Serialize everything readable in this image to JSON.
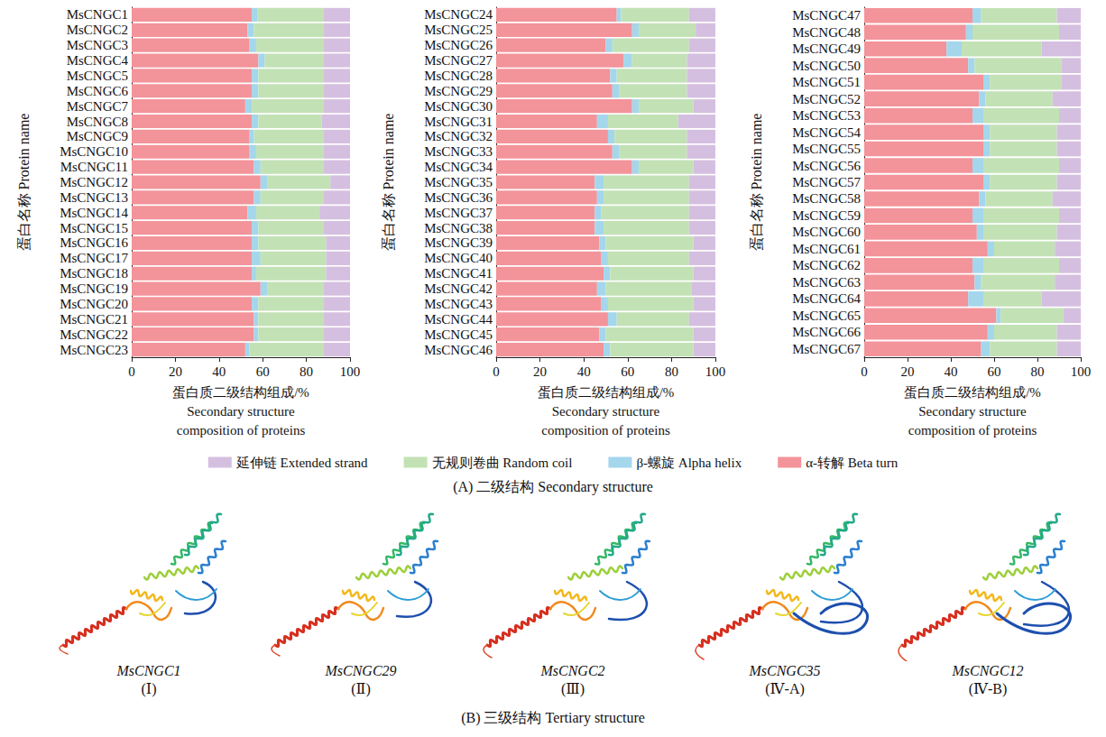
{
  "chart_data": [
    {
      "type": "bar",
      "orientation": "horizontal",
      "stacked": true,
      "grid": false,
      "legend": "bottom",
      "xlabel": "蛋白质二级结构组成/%\nSecondary structure\ncomposition of proteins",
      "ylabel": "蛋白名称 Protein name",
      "xlim": [
        0,
        100
      ],
      "xticks": [
        0,
        20,
        40,
        60,
        80,
        100
      ],
      "categories": [
        "MsCNGC1",
        "MsCNGC2",
        "MsCNGC3",
        "MsCNGC4",
        "MsCNGC5",
        "MsCNGC6",
        "MsCNGC7",
        "MsCNGC8",
        "MsCNGC9",
        "MsCNGC10",
        "MsCNGC11",
        "MsCNGC12",
        "MsCNGC13",
        "MsCNGC14",
        "MsCNGC15",
        "MsCNGC16",
        "MsCNGC17",
        "MsCNGC18",
        "MsCNGC19",
        "MsCNGC20",
        "MsCNGC21",
        "MsCNGC22",
        "MsCNGC23"
      ],
      "series": [
        {
          "name": "α-转解 Beta turn",
          "color": "#f3939a",
          "values": [
            55,
            53,
            54,
            58,
            55,
            55,
            52,
            55,
            54,
            54,
            56,
            59,
            56,
            53,
            55,
            55,
            55,
            55,
            59,
            55,
            56,
            56,
            52
          ]
        },
        {
          "name": "β-螺旋 Alpha helix",
          "color": "#a4d6ec",
          "values": [
            2.5,
            3,
            3,
            3,
            3,
            3,
            3,
            3,
            2,
            3,
            3,
            3,
            3,
            4,
            3,
            3,
            4,
            2,
            3,
            3,
            2,
            2,
            2
          ]
        },
        {
          "name": "无规则卷曲 Random coil",
          "color": "#c2e2b5",
          "values": [
            30.5,
            32,
            31,
            27,
            30,
            30,
            33,
            29,
            32,
            31,
            29,
            29,
            29,
            29,
            30,
            31,
            30,
            32,
            26,
            30,
            30,
            30,
            34
          ]
        },
        {
          "name": "延伸链 Extended strand",
          "color": "#d5bfe0",
          "values": [
            12,
            12,
            12,
            12,
            12,
            12,
            12,
            13,
            12,
            12,
            12,
            9,
            12,
            14,
            12,
            11,
            11,
            11,
            12,
            12,
            12,
            12,
            12
          ]
        }
      ]
    },
    {
      "type": "bar",
      "orientation": "horizontal",
      "stacked": true,
      "grid": false,
      "legend": "bottom",
      "xlabel": "蛋白质二级结构组成/%\nSecondary structure\ncomposition of proteins",
      "ylabel": "蛋白名称 Protein name",
      "xlim": [
        0,
        100
      ],
      "xticks": [
        0,
        20,
        40,
        60,
        80,
        100
      ],
      "categories": [
        "MsCNGC24",
        "MsCNGC25",
        "MsCNGC26",
        "MsCNGC27",
        "MsCNGC28",
        "MsCNGC29",
        "MsCNGC30",
        "MsCNGC31",
        "MsCNGC32",
        "MsCNGC33",
        "MsCNGC34",
        "MsCNGC35",
        "MsCNGC36",
        "MsCNGC37",
        "MsCNGC38",
        "MsCNGC39",
        "MsCNGC40",
        "MsCNGC41",
        "MsCNGC42",
        "MsCNGC43",
        "MsCNGC44",
        "MsCNGC45",
        "MsCNGC46"
      ],
      "series": [
        {
          "name": "α-转解 Beta turn",
          "color": "#f3939a",
          "values": [
            55,
            62,
            50,
            58,
            52,
            53,
            62,
            46,
            51,
            53,
            62,
            45,
            46,
            45,
            45,
            47,
            48,
            49,
            46,
            48,
            51,
            47,
            49
          ]
        },
        {
          "name": "β-螺旋 Alpha helix",
          "color": "#a4d6ec",
          "values": [
            2,
            3,
            3,
            4,
            3,
            3,
            3,
            5,
            3,
            3,
            3,
            4,
            3,
            3,
            4,
            3,
            3,
            3,
            4,
            3,
            4,
            3,
            3
          ]
        },
        {
          "name": "无规则卷曲 Random coil",
          "color": "#c2e2b5",
          "values": [
            31,
            26,
            35,
            25,
            32,
            31,
            25,
            32,
            33,
            31,
            25,
            39,
            39,
            40,
            39,
            40,
            37,
            38,
            39,
            39,
            33,
            40,
            38
          ]
        },
        {
          "name": "延伸链 Extended strand",
          "color": "#d5bfe0",
          "values": [
            12,
            9,
            12,
            13,
            13,
            13,
            10,
            17,
            13,
            13,
            10,
            12,
            12,
            12,
            12,
            10,
            12,
            10,
            11,
            10,
            12,
            10,
            10
          ]
        }
      ]
    },
    {
      "type": "bar",
      "orientation": "horizontal",
      "stacked": true,
      "grid": false,
      "legend": "bottom",
      "xlabel": "蛋白质二级结构组成/%\nSecondary structure\ncomposition of proteins",
      "ylabel": "蛋白名称 Protein name",
      "xlim": [
        0,
        100
      ],
      "xticks": [
        0,
        20,
        40,
        60,
        80,
        100
      ],
      "categories": [
        "MsCNGC47",
        "MsCNGC48",
        "MsCNGC49",
        "MsCNGC50",
        "MsCNGC51",
        "MsCNGC52",
        "MsCNGC53",
        "MsCNGC54",
        "MsCNGC55",
        "MsCNGC56",
        "MsCNGC57",
        "MsCNGC58",
        "MsCNGC59",
        "MsCNGC60",
        "MsCNGC61",
        "MsCNGC62",
        "MsCNGC63",
        "MsCNGC64",
        "MsCNGC65",
        "MsCNGC66",
        "MsCNGC67"
      ],
      "series": [
        {
          "name": "α-转解 Beta turn",
          "color": "#f3939a",
          "values": [
            50,
            47,
            38,
            48,
            55,
            53,
            50,
            55,
            55,
            50,
            55,
            53,
            50,
            52,
            57,
            50,
            51,
            48,
            61,
            57,
            54
          ]
        },
        {
          "name": "β-螺旋 Alpha helix",
          "color": "#a4d6ec",
          "values": [
            4,
            3,
            7,
            3,
            3,
            3,
            5,
            3,
            3,
            5,
            3,
            3,
            5,
            3,
            3,
            5,
            3,
            7,
            2,
            3,
            4
          ]
        },
        {
          "name": "无规则卷曲 Random coil",
          "color": "#c2e2b5",
          "values": [
            35,
            40,
            37,
            40,
            33,
            31,
            35,
            31,
            31,
            35,
            31,
            31,
            35,
            34,
            28,
            35,
            34,
            27,
            29,
            29,
            31
          ]
        },
        {
          "name": "延伸链 Extended strand",
          "color": "#d5bfe0",
          "values": [
            11,
            10,
            18,
            9,
            9,
            13,
            10,
            11,
            11,
            10,
            11,
            13,
            10,
            11,
            12,
            10,
            12,
            18,
            8,
            11,
            11
          ]
        }
      ]
    }
  ],
  "panel_a_caption": "(A) 二级结构 Secondary structure",
  "panel_b": {
    "caption": "(B) 三级结构 Tertiary structure",
    "structures": [
      {
        "gene": "MsCNGC1",
        "class": "(Ⅰ)"
      },
      {
        "gene": "MsCNGC29",
        "class": "(Ⅱ)"
      },
      {
        "gene": "MsCNGC2",
        "class": "(Ⅲ)"
      },
      {
        "gene": "MsCNGC35",
        "class": "(Ⅳ-A)"
      },
      {
        "gene": "MsCNGC12",
        "class": "(Ⅳ-B)"
      }
    ]
  }
}
